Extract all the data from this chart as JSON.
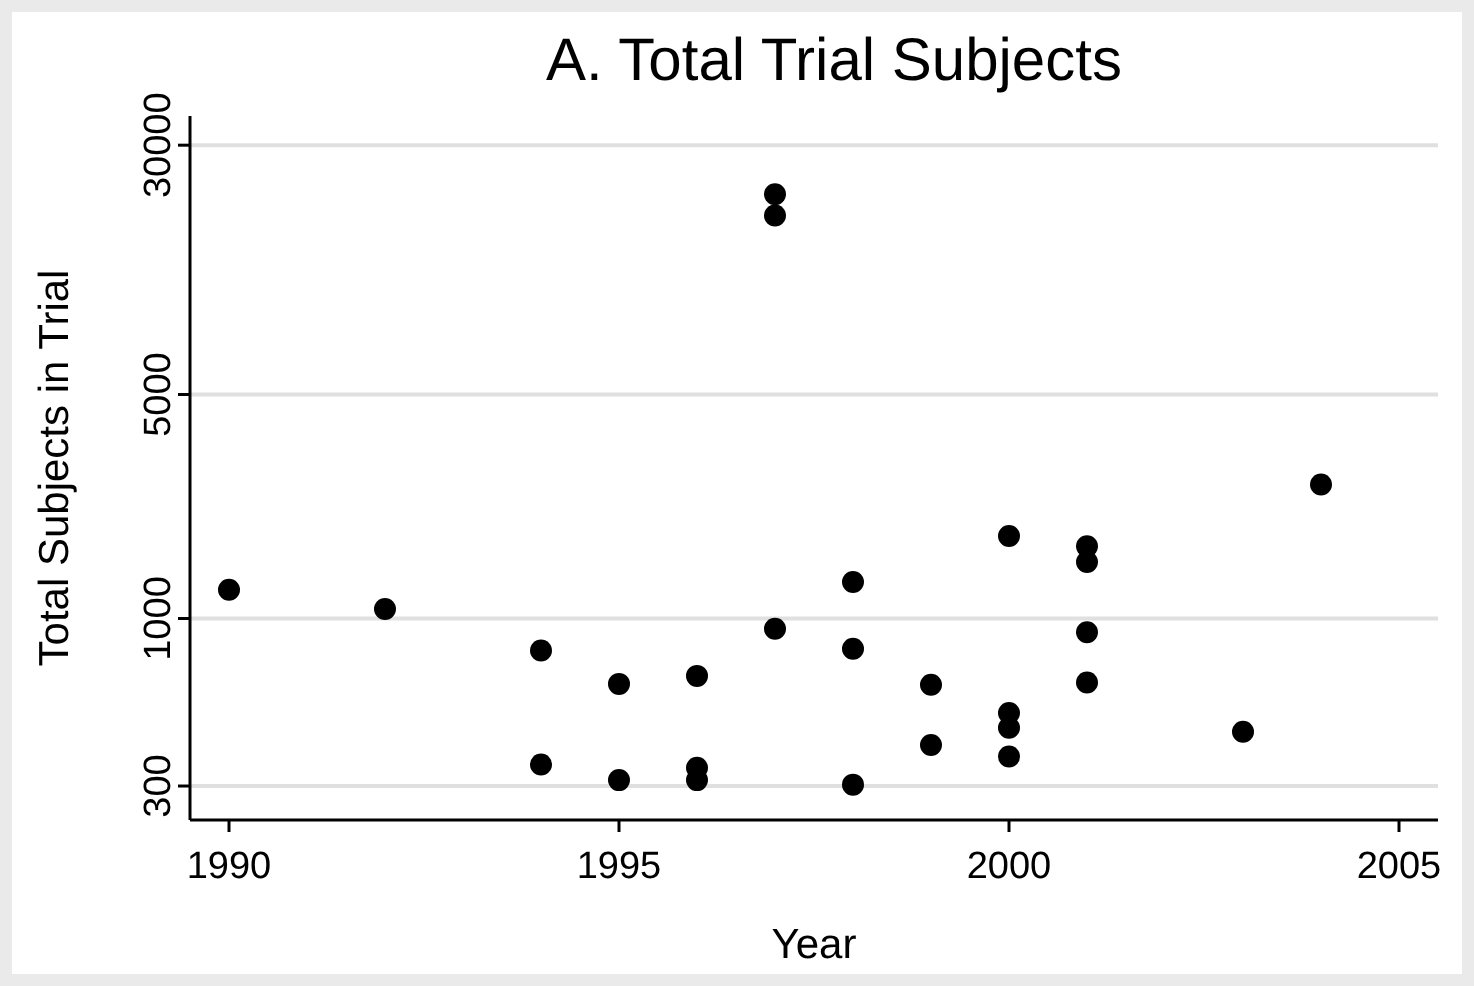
{
  "chart_data": {
    "type": "scatter",
    "title": "A. Total Trial Subjects",
    "xlabel": "Year",
    "ylabel": "Total Subjects in Trial",
    "x": [
      1990,
      1992,
      1994,
      1994,
      1995,
      1995,
      1996,
      1996,
      1996,
      1997,
      1997,
      1997,
      1998,
      1998,
      1998,
      1999,
      1999,
      2000,
      2000,
      2000,
      2000,
      2001,
      2001,
      2001,
      2001,
      2003,
      2004
    ],
    "series": [
      {
        "color": "#000000",
        "values": [
          1230,
          1070,
          795,
          350,
          625,
          313,
          662,
          342,
          313,
          21100,
          18100,
          929,
          1300,
          804,
          303,
          621,
          403,
          1810,
          507,
          456,
          371,
          1680,
          1500,
          906,
          631,
          443,
          2620
        ]
      }
    ],
    "xlim": [
      1989.5,
      2005.5
    ],
    "xticks": [
      1990,
      1995,
      2000,
      2005
    ],
    "ylim": [
      235,
      37000
    ],
    "yticks": [
      300,
      1000,
      5000,
      30000
    ],
    "log": "y",
    "grid": "y",
    "marker": "circle"
  }
}
